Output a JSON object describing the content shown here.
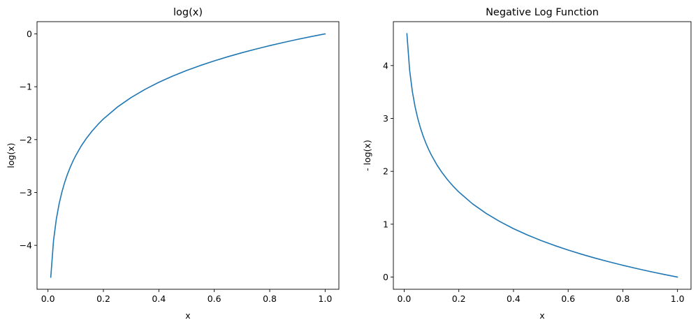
{
  "chart_data": [
    {
      "type": "line",
      "title": "log(x)",
      "xlabel": "x",
      "ylabel": "log(x)",
      "xlim": [
        -0.0395,
        1.0495
      ],
      "ylim": [
        -4.8302,
        0.2303
      ],
      "xticks": [
        0.0,
        0.2,
        0.4,
        0.6,
        0.8,
        1.0
      ],
      "xtick_labels": [
        "0.0",
        "0.2",
        "0.4",
        "0.6",
        "0.8",
        "1.0"
      ],
      "yticks": [
        0,
        -1,
        -2,
        -3,
        -4
      ],
      "ytick_labels": [
        "0",
        "−1",
        "−2",
        "−3",
        "−4"
      ],
      "grid": false,
      "series": [
        {
          "color": "#1f77b4",
          "x": [
            0.01,
            0.02,
            0.03,
            0.04,
            0.05,
            0.06,
            0.07,
            0.08,
            0.09,
            0.1,
            0.12,
            0.14,
            0.16,
            0.18,
            0.2,
            0.25,
            0.3,
            0.35,
            0.4,
            0.45,
            0.5,
            0.55,
            0.6,
            0.65,
            0.7,
            0.75,
            0.8,
            0.85,
            0.9,
            0.95,
            1.0
          ],
          "y": [
            -4.605,
            -3.912,
            -3.507,
            -3.219,
            -2.996,
            -2.813,
            -2.659,
            -2.526,
            -2.408,
            -2.303,
            -2.12,
            -1.966,
            -1.833,
            -1.715,
            -1.609,
            -1.386,
            -1.204,
            -1.05,
            -0.916,
            -0.799,
            -0.693,
            -0.598,
            -0.511,
            -0.431,
            -0.357,
            -0.288,
            -0.223,
            -0.163,
            -0.105,
            -0.051,
            0.0
          ]
        }
      ]
    },
    {
      "type": "line",
      "title": "Negative Log Function",
      "xlabel": "x",
      "ylabel": "- log(x)",
      "xlim": [
        -0.0395,
        1.0495
      ],
      "ylim": [
        -0.2303,
        4.8302
      ],
      "xticks": [
        0.0,
        0.2,
        0.4,
        0.6,
        0.8,
        1.0
      ],
      "xtick_labels": [
        "0.0",
        "0.2",
        "0.4",
        "0.6",
        "0.8",
        "1.0"
      ],
      "yticks": [
        0,
        1,
        2,
        3,
        4
      ],
      "ytick_labels": [
        "0",
        "1",
        "2",
        "3",
        "4"
      ],
      "grid": false,
      "series": [
        {
          "color": "#1f77b4",
          "x": [
            0.01,
            0.02,
            0.03,
            0.04,
            0.05,
            0.06,
            0.07,
            0.08,
            0.09,
            0.1,
            0.12,
            0.14,
            0.16,
            0.18,
            0.2,
            0.25,
            0.3,
            0.35,
            0.4,
            0.45,
            0.5,
            0.55,
            0.6,
            0.65,
            0.7,
            0.75,
            0.8,
            0.85,
            0.9,
            0.95,
            1.0
          ],
          "y": [
            4.605,
            3.912,
            3.507,
            3.219,
            2.996,
            2.813,
            2.659,
            2.526,
            2.408,
            2.303,
            2.12,
            1.966,
            1.833,
            1.715,
            1.609,
            1.386,
            1.204,
            1.05,
            0.916,
            0.799,
            0.693,
            0.598,
            0.511,
            0.431,
            0.357,
            0.288,
            0.223,
            0.163,
            0.105,
            0.051,
            0.0
          ]
        }
      ]
    }
  ]
}
